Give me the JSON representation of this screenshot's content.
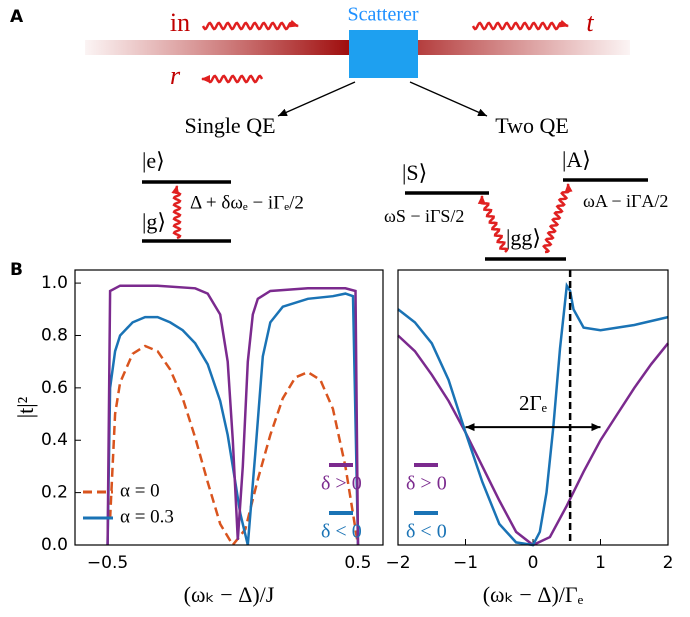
{
  "panel_a": {
    "label": "A",
    "incoming": "in",
    "transmitted": "t",
    "reflected": "r",
    "scatterer": "Scatterer",
    "single": {
      "title": "Single QE",
      "excited": "|e⟩",
      "ground": "|g⟩",
      "transition": "Δ + δωₑ − iΓₑ/2"
    },
    "two": {
      "title": "Two QE",
      "symmetric": "|S⟩",
      "antisymmetric": "|A⟩",
      "ground": "|gg⟩",
      "transition_s": "ωS − iΓS/2",
      "transition_a": "ωA − iΓA/2"
    }
  },
  "panel_b": {
    "label": "B"
  },
  "chart_data": [
    {
      "type": "line",
      "xlabel": "(ωₖ − Δ)/J",
      "ylabel": "|t|²",
      "xlim": [
        -0.63,
        0.6
      ],
      "ylim": [
        0,
        1.05
      ],
      "xticks": [
        {
          "value": -0.5,
          "label": "−0.5"
        },
        0.5
      ],
      "yticks": [
        {
          "value": 0,
          "label": "0.0"
        },
        0.2,
        0.4,
        0.6,
        0.8,
        {
          "value": 1,
          "label": "1.0"
        }
      ],
      "legend": "lower left",
      "series": [
        {
          "name": "α = 0",
          "color": "#d9541e",
          "linestyle": "dashed",
          "x": [
            -0.49,
            -0.47,
            -0.45,
            -0.4,
            -0.35,
            -0.3,
            -0.25,
            -0.2,
            -0.15,
            -0.1,
            -0.05,
            0,
            0.05,
            0.1,
            0.15,
            0.2,
            0.25,
            0.3,
            0.35,
            0.4,
            0.45,
            0.48,
            0.5
          ],
          "values": [
            0.1,
            0.5,
            0.62,
            0.73,
            0.76,
            0.74,
            0.67,
            0.56,
            0.41,
            0.24,
            0.08,
            0.0,
            0.06,
            0.25,
            0.42,
            0.56,
            0.64,
            0.66,
            0.63,
            0.52,
            0.3,
            0.12,
            0.0
          ]
        },
        {
          "name": "α = 0.3",
          "color": "#1a73b5",
          "x": [
            -0.5,
            -0.49,
            -0.47,
            -0.45,
            -0.4,
            -0.35,
            -0.3,
            -0.25,
            -0.2,
            -0.15,
            -0.1,
            -0.05,
            -0.02,
            0.0,
            0.03,
            0.06,
            0.09,
            0.12,
            0.15,
            0.2,
            0.3,
            0.4,
            0.45,
            0.48,
            0.5
          ],
          "values": [
            0,
            0.6,
            0.74,
            0.8,
            0.85,
            0.87,
            0.87,
            0.85,
            0.82,
            0.77,
            0.69,
            0.55,
            0.42,
            0.3,
            0.12,
            0.0,
            0.35,
            0.72,
            0.85,
            0.91,
            0.94,
            0.95,
            0.96,
            0.95,
            0
          ]
        },
        {
          "color": "#7b2a8e",
          "x": [
            -0.5,
            -0.49,
            -0.45,
            -0.3,
            -0.15,
            -0.1,
            -0.05,
            -0.02,
            0.0,
            0.02,
            0.04,
            0.06,
            0.08,
            0.1,
            0.15,
            0.3,
            0.45,
            0.49,
            0.5
          ],
          "values": [
            0,
            0.97,
            0.99,
            0.99,
            0.98,
            0.96,
            0.88,
            0.7,
            0.4,
            0.02,
            0.3,
            0.7,
            0.88,
            0.94,
            0.97,
            0.98,
            0.98,
            0.97,
            0
          ]
        }
      ],
      "annotations": [
        {
          "text": "δ > 0",
          "color": "#7b2a8e"
        },
        {
          "text": "δ < 0",
          "color": "#1a73b5"
        }
      ]
    },
    {
      "type": "line",
      "xlabel": "(ωₖ − Δ)/Γₑ",
      "xlim": [
        -2,
        2
      ],
      "ylim": [
        0,
        1.05
      ],
      "xticks": [
        {
          "value": -2,
          "label": "−2"
        },
        {
          "value": -1,
          "label": "−1"
        },
        0,
        1,
        2
      ],
      "series": [
        {
          "color": "#7b2a8e",
          "x": [
            -2,
            -1.75,
            -1.5,
            -1.25,
            -1,
            -0.75,
            -0.5,
            -0.25,
            0,
            0.25,
            0.5,
            0.75,
            1,
            1.25,
            1.5,
            1.75,
            2
          ],
          "values": [
            0.8,
            0.74,
            0.65,
            0.55,
            0.43,
            0.3,
            0.17,
            0.05,
            0.0,
            0.03,
            0.15,
            0.28,
            0.4,
            0.5,
            0.6,
            0.69,
            0.77
          ]
        },
        {
          "color": "#1a73b5",
          "x": [
            -2,
            -1.75,
            -1.5,
            -1.25,
            -1,
            -0.75,
            -0.5,
            -0.25,
            0,
            0.1,
            0.2,
            0.3,
            0.4,
            0.5,
            0.55,
            0.6,
            0.75,
            1,
            1.5,
            2
          ],
          "values": [
            0.9,
            0.85,
            0.77,
            0.63,
            0.43,
            0.24,
            0.08,
            0.01,
            0.0,
            0.05,
            0.2,
            0.45,
            0.75,
            0.99,
            0.97,
            0.9,
            0.83,
            0.82,
            0.84,
            0.87
          ]
        }
      ],
      "vline": 0.55,
      "arrow": {
        "x": [
          -1,
          1
        ],
        "y": 0.45,
        "label": "2Γₑ"
      },
      "annotations": [
        {
          "text": "δ > 0",
          "color": "#7b2a8e"
        },
        {
          "text": "δ < 0",
          "color": "#1a73b5"
        }
      ]
    }
  ]
}
